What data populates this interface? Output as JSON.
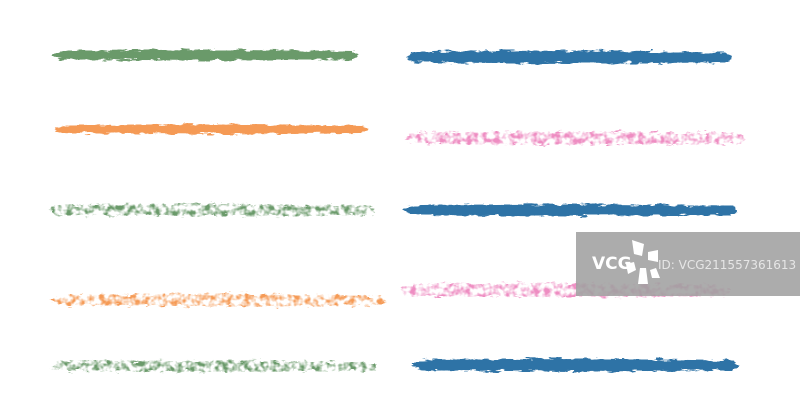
{
  "colors": {
    "green": "#6b9a6b",
    "blue": "#2f73a6",
    "orange": "#f59a55",
    "pink": "#ee8dc2"
  },
  "strokes": [
    {
      "color": "green",
      "style": "solid"
    },
    {
      "color": "orange",
      "style": "solid"
    },
    {
      "color": "green",
      "style": "speckled"
    },
    {
      "color": "orange",
      "style": "speckled"
    },
    {
      "color": "green",
      "style": "speckled"
    },
    {
      "color": "blue",
      "style": "solid"
    },
    {
      "color": "pink",
      "style": "speckled"
    },
    {
      "color": "blue",
      "style": "solid"
    },
    {
      "color": "pink",
      "style": "speckled"
    },
    {
      "color": "blue",
      "style": "solid"
    }
  ],
  "watermark": {
    "logo": "VCG",
    "id": "ID: VCG211557361613"
  }
}
